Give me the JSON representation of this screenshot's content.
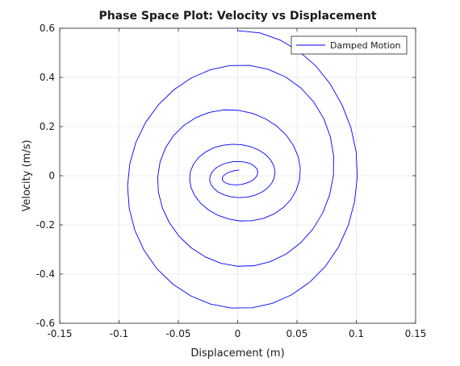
{
  "chart_data": {
    "type": "line",
    "title": "Phase Space Plot: Velocity vs Displacement",
    "xlabel": "Displacement (m)",
    "ylabel": "Velocity (m/s)",
    "xlim": [
      -0.15,
      0.15
    ],
    "ylim": [
      -0.6,
      0.6
    ],
    "xticks": [
      -0.15,
      -0.1,
      -0.05,
      0,
      0.05,
      0.1,
      0.15
    ],
    "xtick_labels": [
      "-0.15",
      "-0.1",
      "-0.05",
      "0",
      "0.05",
      "0.1",
      "0.15"
    ],
    "yticks": [
      -0.6,
      -0.4,
      -0.2,
      0,
      0.2,
      0.4,
      0.6
    ],
    "ytick_labels": [
      "-0.6",
      "-0.4",
      "-0.2",
      "0",
      "0.2",
      "0.4",
      "0.6"
    ],
    "grid": true,
    "legend": "top-right",
    "series": [
      {
        "name": "Damped Motion",
        "color": "#0000ff",
        "x": [
          0.0,
          0.0188,
          0.0358,
          0.0517,
          0.066,
          0.078,
          0.088,
          0.0955,
          0.0999,
          0.1008,
          0.0985,
          0.0932,
          0.085,
          0.074,
          0.0607,
          0.0455,
          0.0292,
          0.012,
          -0.0055,
          -0.0228,
          -0.0394,
          -0.0546,
          -0.0679,
          -0.0787,
          -0.0867,
          -0.0914,
          -0.0928,
          -0.0909,
          -0.0858,
          -0.0776,
          -0.0667,
          -0.0537,
          -0.039,
          -0.0231,
          -0.0067,
          0.0098,
          0.0256,
          0.0403,
          0.0533,
          0.0641,
          0.0725,
          0.0781,
          0.0809,
          0.0807,
          0.0775,
          0.0717,
          0.0634,
          0.053,
          0.041,
          0.0277,
          0.0138,
          -0.0004,
          -0.0142,
          -0.0273,
          -0.0392,
          -0.0494,
          -0.0576,
          -0.0634,
          -0.0668,
          -0.0674,
          -0.0654,
          -0.0609,
          -0.0541,
          -0.0453,
          -0.035,
          -0.0236,
          -0.0115,
          0.0006,
          0.0124,
          0.0233,
          0.033,
          0.041,
          0.0471,
          0.0511,
          0.0528,
          0.0522,
          0.0495,
          0.0448,
          0.0383,
          0.0304,
          0.0214,
          0.0119,
          0.0021,
          -0.0076,
          -0.0166,
          -0.0246,
          -0.0312,
          -0.0362,
          -0.0393,
          -0.0405,
          -0.0398,
          -0.0371,
          -0.0328,
          -0.027,
          -0.0201,
          -0.0124,
          -0.0044,
          0.0036,
          0.0112,
          0.018,
          0.0236,
          0.0279,
          0.0305,
          0.0315,
          0.0308,
          0.0285,
          0.0248,
          0.0199,
          0.0141,
          0.0077,
          0.0011,
          -0.0053,
          -0.0112,
          -0.0162,
          -0.02,
          -0.0225,
          -0.0236,
          -0.0232,
          -0.0214,
          -0.0184,
          -0.0143,
          -0.0094,
          -0.004,
          0.0014,
          0.0065,
          0.0108,
          0.0141,
          0.0162,
          0.017,
          0.0165,
          0.0147,
          0.0118,
          0.008,
          0.0036,
          -0.001,
          -0.0053,
          -0.0089,
          -0.0115,
          -0.0129,
          -0.013,
          -0.0118,
          -0.0095,
          -0.0063,
          -0.0025,
          0.0013
        ],
        "y": [
          0.59,
          0.581,
          0.552,
          0.506,
          0.446,
          0.373,
          0.288,
          0.195,
          0.096,
          -0.006,
          -0.106,
          -0.202,
          -0.29,
          -0.368,
          -0.433,
          -0.484,
          -0.519,
          -0.537,
          -0.538,
          -0.522,
          -0.489,
          -0.441,
          -0.379,
          -0.305,
          -0.222,
          -0.133,
          -0.042,
          0.049,
          0.136,
          0.217,
          0.289,
          0.35,
          0.398,
          0.431,
          0.448,
          0.449,
          0.433,
          0.402,
          0.357,
          0.3,
          0.233,
          0.159,
          0.08,
          0.0,
          -0.078,
          -0.151,
          -0.217,
          -0.273,
          -0.318,
          -0.349,
          -0.366,
          -0.368,
          -0.356,
          -0.33,
          -0.293,
          -0.246,
          -0.191,
          -0.131,
          -0.068,
          -0.005,
          0.056,
          0.113,
          0.163,
          0.205,
          0.237,
          0.258,
          0.268,
          0.266,
          0.254,
          0.232,
          0.202,
          0.165,
          0.122,
          0.077,
          0.03,
          -0.015,
          -0.058,
          -0.097,
          -0.13,
          -0.156,
          -0.174,
          -0.183,
          -0.184,
          -0.176,
          -0.161,
          -0.139,
          -0.112,
          -0.081,
          -0.048,
          -0.015,
          0.018,
          0.048,
          0.075,
          0.097,
          0.114,
          0.124,
          0.128,
          0.126,
          0.118,
          0.104,
          0.086,
          0.064,
          0.04,
          0.015,
          -0.009,
          -0.032,
          -0.052,
          -0.068,
          -0.08,
          -0.087,
          -0.089,
          -0.086,
          -0.078,
          -0.067,
          -0.052,
          -0.036,
          -0.018,
          -0.001,
          0.016,
          0.031,
          0.043,
          0.052,
          0.057,
          0.058,
          0.055,
          0.049,
          0.039,
          0.028,
          0.015,
          0.002,
          -0.01,
          -0.021,
          -0.029,
          -0.035,
          -0.037,
          -0.036,
          -0.032,
          -0.025,
          -0.017,
          -0.008,
          0.001,
          0.009,
          0.016,
          0.021,
          0.023
        ]
      }
    ]
  }
}
